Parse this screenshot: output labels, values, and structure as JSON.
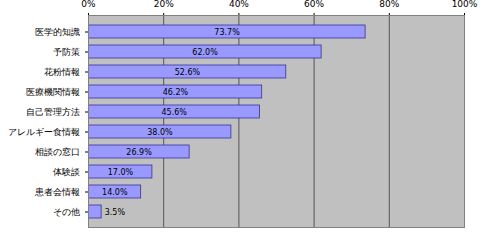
{
  "chart_data": {
    "type": "bar",
    "orientation": "horizontal",
    "categories": [
      "医学的知識",
      "予防策",
      "花粉情報",
      "医療機関情報",
      "自己管理方法",
      "アレルギー食情報",
      "相談の窓口",
      "体験談",
      "患者会情報",
      "その他"
    ],
    "values": [
      73.7,
      62.0,
      52.6,
      46.2,
      45.6,
      38.0,
      26.9,
      17.0,
      14.0,
      3.5
    ],
    "value_labels": [
      "73.7%",
      "62.0%",
      "52.6%",
      "46.2%",
      "45.6%",
      "38.0%",
      "26.9%",
      "17.0%",
      "14.0%",
      "3.5%"
    ],
    "color": "#9999ff",
    "xlim": [
      0,
      100
    ],
    "xticks": [
      {
        "value": 0,
        "label": "0%"
      },
      {
        "value": 20,
        "label": "20%"
      },
      {
        "value": 40,
        "label": "40%"
      },
      {
        "value": 60,
        "label": "60%"
      },
      {
        "value": 80,
        "label": "80%"
      },
      {
        "value": 100,
        "label": "100%"
      }
    ],
    "grid": true,
    "data_labels": true
  }
}
